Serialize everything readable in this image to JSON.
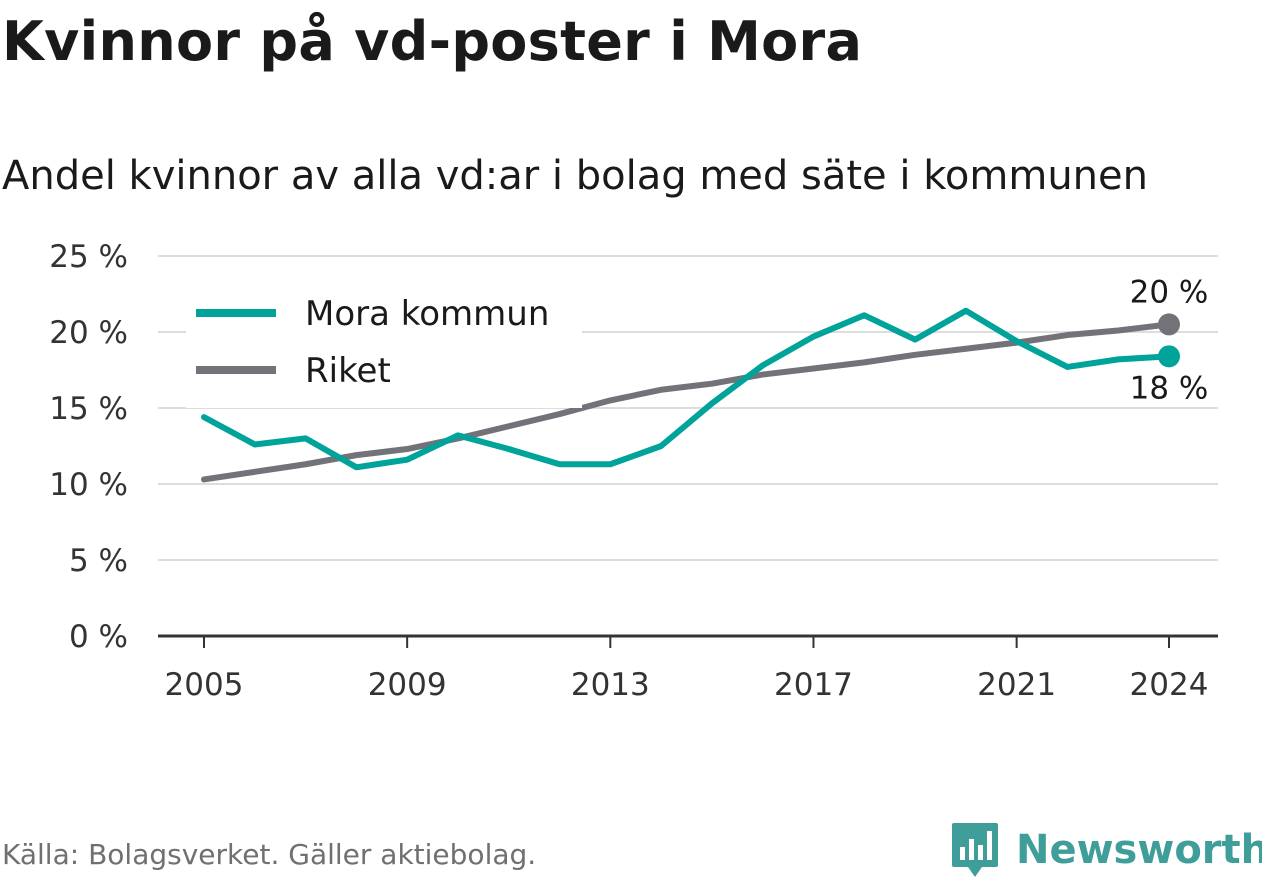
{
  "header": {
    "title": "Kvinnor på vd-poster i Mora",
    "subtitle": "Andel kvinnor av alla vd:ar i bolag med säte i kommunen"
  },
  "footer": {
    "source": "Källa: Bolagsverket. Gäller aktiebolag.",
    "brand": "Newsworthy",
    "brand_icon": "newsworthy-logo-icon"
  },
  "colors": {
    "mora": "#00a39a",
    "riket": "#737278",
    "grid": "#dddddd",
    "axis": "#333333",
    "brand": "#3f9e99"
  },
  "chart_data": {
    "type": "line",
    "title": "Kvinnor på vd-poster i Mora",
    "subtitle": "Andel kvinnor av alla vd:ar i bolag med säte i kommunen",
    "xlabel": "",
    "ylabel": "",
    "x": [
      2005,
      2006,
      2007,
      2008,
      2009,
      2010,
      2011,
      2012,
      2013,
      2014,
      2015,
      2016,
      2017,
      2018,
      2019,
      2020,
      2021,
      2022,
      2023,
      2024
    ],
    "x_ticks": [
      "2005",
      "2009",
      "2013",
      "2017",
      "2021",
      "2024"
    ],
    "x_tick_values": [
      2005,
      2009,
      2013,
      2017,
      2021,
      2024
    ],
    "ylim": [
      0,
      25
    ],
    "y_ticks": [
      0,
      5,
      10,
      15,
      20,
      25
    ],
    "y_tick_labels": [
      "0 %",
      "5 %",
      "10 %",
      "15 %",
      "20 %",
      "25 %"
    ],
    "grid": true,
    "legend_position": "top-left",
    "series": [
      {
        "name": "Mora kommun",
        "color": "#00a39a",
        "values": [
          14.4,
          12.6,
          13.0,
          11.1,
          11.6,
          13.2,
          12.3,
          11.3,
          11.3,
          12.5,
          15.3,
          17.8,
          19.7,
          21.1,
          19.5,
          21.4,
          19.4,
          17.7,
          18.2,
          18.4
        ],
        "end_label": "18 %"
      },
      {
        "name": "Riket",
        "color": "#737278",
        "values": [
          10.3,
          10.8,
          11.3,
          11.9,
          12.3,
          13.0,
          13.8,
          14.6,
          15.5,
          16.2,
          16.6,
          17.2,
          17.6,
          18.0,
          18.5,
          18.9,
          19.3,
          19.8,
          20.1,
          20.5
        ],
        "end_label": "20 %"
      }
    ]
  }
}
